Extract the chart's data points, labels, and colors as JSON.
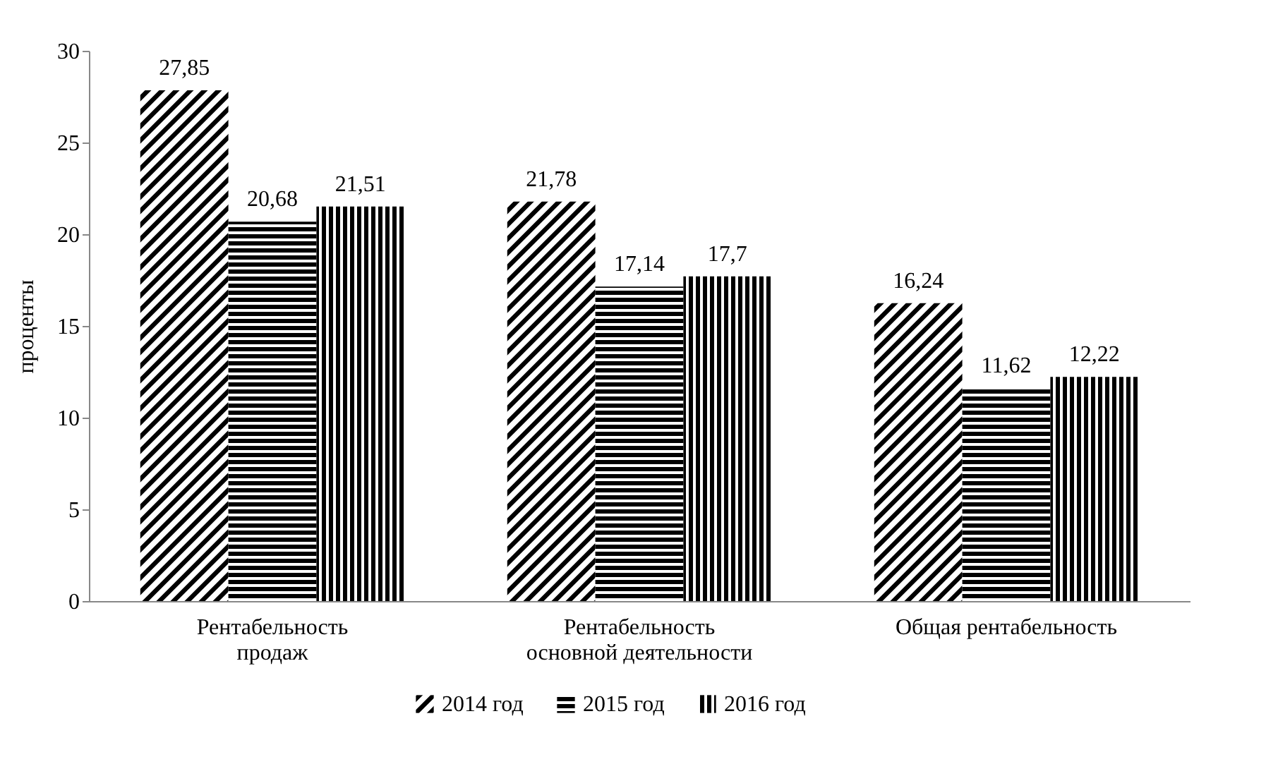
{
  "chart_data": {
    "type": "bar",
    "ylabel": "проценты",
    "categories": [
      "Рентабельность\nпродаж",
      "Рентабельность\nосновной деятельности",
      "Общая рентабельность"
    ],
    "series": [
      {
        "name": "2014 год",
        "color": "#000000",
        "values": [
          27.85,
          21.78,
          16.24
        ],
        "value_labels": [
          "27,85",
          "21,78",
          "16,24"
        ]
      },
      {
        "name": "2015 год",
        "color": "#000000",
        "values": [
          20.68,
          17.14,
          11.62
        ],
        "value_labels": [
          "20,68",
          "17,14",
          "11,62"
        ]
      },
      {
        "name": "2016 год",
        "color": "#000000",
        "values": [
          21.51,
          17.7,
          12.22
        ],
        "value_labels": [
          "21,51",
          "17,7",
          "12,22"
        ]
      }
    ],
    "ylim": [
      0,
      30
    ],
    "yticks": [
      0,
      5,
      10,
      15,
      20,
      25,
      30
    ],
    "grid": false,
    "legend": "bottom"
  }
}
